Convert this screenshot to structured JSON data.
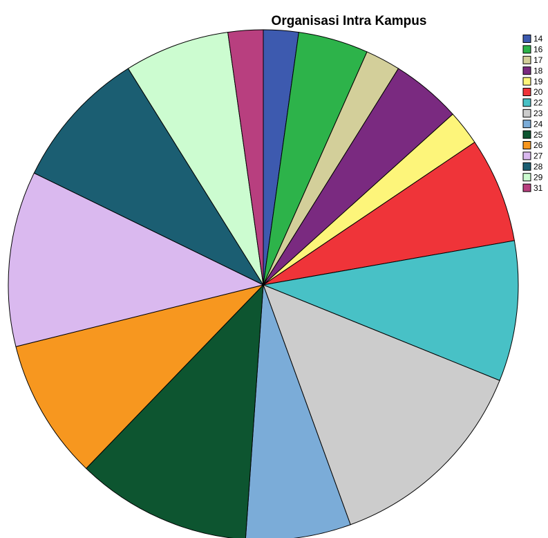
{
  "chart_data": {
    "type": "pie",
    "title": "Organisasi Intra Kampus",
    "categories": [
      "14",
      "16",
      "17",
      "18",
      "19",
      "20",
      "22",
      "23",
      "24",
      "25",
      "26",
      "27",
      "28",
      "29",
      "31"
    ],
    "values": [
      1,
      2,
      1,
      2,
      1,
      3,
      4,
      6,
      3,
      5,
      4,
      5,
      4,
      3,
      1
    ],
    "colors": [
      "#3d5aaf",
      "#2db34a",
      "#d3cf9a",
      "#7a2a80",
      "#fdf57a",
      "#ef3439",
      "#48c1c6",
      "#cccccc",
      "#7bacd8",
      "#0d5530",
      "#f7971f",
      "#dab9ef",
      "#1b5e72",
      "#ccfcd0",
      "#b83f7f"
    ],
    "legend": "right"
  }
}
